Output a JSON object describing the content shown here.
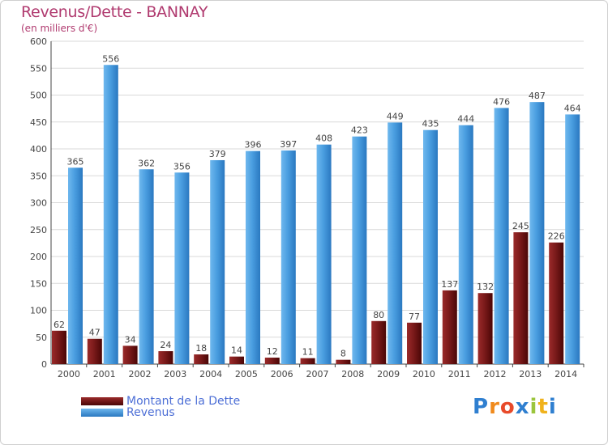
{
  "header": {
    "title": "Revenus/Dette - BANNAY",
    "subtitle": "(en milliers d'€)"
  },
  "legend": {
    "items": [
      {
        "label": "Montant de la Dette",
        "color": "#7a1a1a"
      },
      {
        "label": "Revenus",
        "color": "#4a9ee0"
      }
    ]
  },
  "logo": {
    "letters": [
      "P",
      "r",
      "o",
      "x",
      "i",
      "t",
      "i"
    ],
    "colors": [
      "#2f7fd0",
      "#f08a1c",
      "#e84a2a",
      "#2f7fd0",
      "#9bc53d",
      "#f0b21c",
      "#2f7fd0"
    ]
  },
  "chart_data": {
    "type": "bar",
    "title": "Revenus/Dette - BANNAY",
    "subtitle": "(en milliers d'€)",
    "categories": [
      "2000",
      "2001",
      "2002",
      "2003",
      "2004",
      "2005",
      "2006",
      "2007",
      "2008",
      "2009",
      "2010",
      "2011",
      "2012",
      "2013",
      "2014"
    ],
    "series": [
      {
        "name": "Montant de la Dette",
        "color": "#7a1a1a",
        "values": [
          62,
          47,
          34,
          24,
          18,
          14,
          12,
          11,
          8,
          80,
          77,
          137,
          132,
          245,
          226
        ]
      },
      {
        "name": "Revenus",
        "color": "#4a9ee0",
        "values": [
          365,
          556,
          362,
          356,
          379,
          396,
          397,
          408,
          423,
          449,
          435,
          444,
          476,
          487,
          464
        ]
      }
    ],
    "ylim": [
      0,
      600
    ],
    "yticks": [
      0,
      50,
      100,
      150,
      200,
      250,
      300,
      350,
      400,
      450,
      500,
      550,
      600
    ],
    "grid": true,
    "legend_position": "bottom-left"
  }
}
